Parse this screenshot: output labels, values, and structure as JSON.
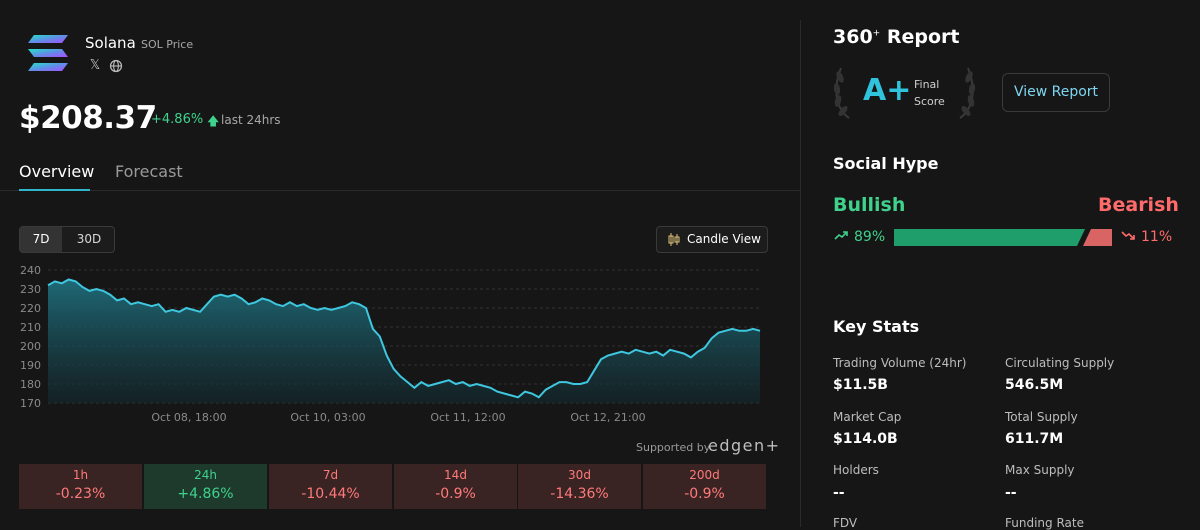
{
  "coin": {
    "name": "Solana",
    "subtitle": "SOL Price",
    "price": "$208.37",
    "change": "+4.86%",
    "change_period": "last 24hrs",
    "social_icons": [
      "x-icon",
      "globe-icon"
    ]
  },
  "tabs": [
    {
      "label": "Overview",
      "active": true
    },
    {
      "label": "Forecast",
      "active": false
    }
  ],
  "chart_controls": {
    "ranges": [
      {
        "label": "7D",
        "active": true
      },
      {
        "label": "30D",
        "active": false
      }
    ],
    "candle_view_label": "Candle View"
  },
  "chart_data": {
    "type": "area",
    "series": [
      {
        "values": [
          232,
          234,
          233,
          235,
          234,
          231,
          229,
          230,
          229,
          227,
          224,
          225,
          222,
          223,
          222,
          221,
          222,
          218,
          219,
          218,
          220,
          219,
          218,
          222,
          226,
          227,
          226,
          227,
          225,
          222,
          223,
          225,
          224,
          222,
          221,
          223,
          221,
          222,
          220,
          219,
          220,
          219,
          220,
          221,
          223,
          222,
          220,
          209,
          205,
          195,
          188,
          184,
          181,
          178,
          181,
          179,
          180,
          181,
          182,
          180,
          181,
          179,
          180,
          179,
          178,
          176,
          175,
          174,
          173,
          176,
          175,
          173,
          177,
          179,
          181,
          181,
          180,
          180,
          181,
          187,
          193,
          195,
          196,
          197,
          196,
          198,
          197,
          196,
          197,
          195,
          198,
          197,
          196,
          194,
          197,
          199,
          204,
          207,
          208,
          209,
          208,
          208,
          209,
          208
        ]
      }
    ],
    "ylim": [
      170,
      240
    ],
    "yticks": [
      "240",
      "230",
      "220",
      "210",
      "200",
      "190",
      "180",
      "170"
    ],
    "xticks": [
      "Oct 08, 18:00",
      "Oct 10, 03:00",
      "Oct 11, 12:00",
      "Oct 12, 21:00"
    ],
    "grid": true,
    "line_color": "#3ec7df"
  },
  "supported_by": {
    "label": "Supported by",
    "brand": "edgen+"
  },
  "performance": [
    {
      "label": "1h",
      "value": "-0.23%",
      "positive": false
    },
    {
      "label": "24h",
      "value": "+4.86%",
      "positive": true
    },
    {
      "label": "7d",
      "value": "-10.44%",
      "positive": false
    },
    {
      "label": "14d",
      "value": "-0.9%",
      "positive": false
    },
    {
      "label": "30d",
      "value": "-14.36%",
      "positive": false
    },
    {
      "label": "200d",
      "value": "-0.9%",
      "positive": false
    }
  ],
  "report": {
    "title": "360",
    "title_sup": "+",
    "title_suffix": "Report",
    "grade": "A+",
    "final_label_1": "Final",
    "final_label_2": "Score",
    "view_button": "View Report"
  },
  "social_hype": {
    "title": "Social Hype",
    "bullish_label": "Bullish",
    "bearish_label": "Bearish",
    "bullish_pct": "89%",
    "bearish_pct": "11%",
    "bullish_fraction": 0.89,
    "colors": {
      "bullish": "#1f9d6b",
      "bearish": "#d86464"
    }
  },
  "key_stats": {
    "title": "Key Stats",
    "items": [
      {
        "label": "Trading Volume (24hr)",
        "value": "$11.5B"
      },
      {
        "label": "Circulating Supply",
        "value": "546.5M"
      },
      {
        "label": "Market Cap",
        "value": "$114.0B"
      },
      {
        "label": "Total Supply",
        "value": "611.7M"
      },
      {
        "label": "Holders",
        "value": "--"
      },
      {
        "label": "Max Supply",
        "value": "--"
      },
      {
        "label": "FDV",
        "value": ""
      },
      {
        "label": "Funding Rate",
        "value": ""
      }
    ]
  }
}
